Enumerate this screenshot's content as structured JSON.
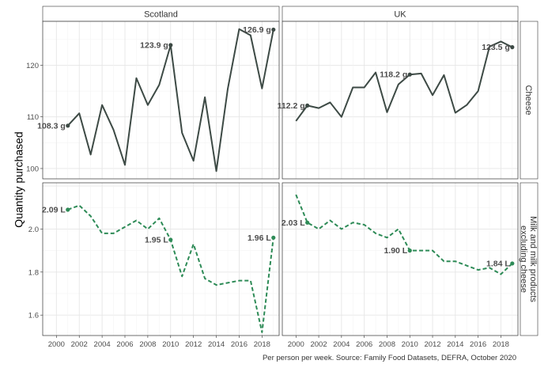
{
  "chart_data": {
    "type": "line",
    "ylabel": "Quantity purchased",
    "caption": "Per person per week. Source: Family Food Datasets, DEFRA, October 2020",
    "column_strips": [
      "Scotland",
      "UK"
    ],
    "row_strips": [
      "Cheese",
      "Milk and milk products\nexcluding cheese"
    ],
    "x_ticks": [
      2000,
      2002,
      2004,
      2006,
      2008,
      2010,
      2012,
      2014,
      2016,
      2018
    ],
    "x_range": [
      1998.8,
      2019.5
    ],
    "grid": true,
    "colors": {
      "cheese": "#3d4a45",
      "milk": "#2e8b57"
    },
    "rows": [
      {
        "strip": "Cheese",
        "y_range": [
          98,
          128.5
        ],
        "y_ticks": [
          100,
          110,
          120
        ],
        "panels": [
          {
            "strip": "Scotland",
            "x": [
              2001,
              2002,
              2003,
              2004,
              2005,
              2006,
              2007,
              2008,
              2009,
              2010,
              2011,
              2012,
              2013,
              2014,
              2015,
              2016,
              2017,
              2018,
              2019
            ],
            "values": [
              108.3,
              110.7,
              102.7,
              112.3,
              107.5,
              100.7,
              117.5,
              112.3,
              116.2,
              123.9,
              106.9,
              101.5,
              113.8,
              99.5,
              115.4,
              127.0,
              125.8,
              115.5,
              126.9
            ],
            "labels": [
              {
                "x": 2001,
                "y": 108.3,
                "text": "108.3 g"
              },
              {
                "x": 2010,
                "y": 123.9,
                "text": "123.9 g"
              },
              {
                "x": 2019,
                "y": 126.9,
                "text": "126.9 g"
              }
            ]
          },
          {
            "strip": "UK",
            "x": [
              2000,
              2001,
              2002,
              2003,
              2004,
              2005,
              2006,
              2007,
              2008,
              2009,
              2010,
              2011,
              2012,
              2013,
              2014,
              2015,
              2016,
              2017,
              2018,
              2019
            ],
            "values": [
              109.2,
              112.2,
              111.7,
              112.8,
              110.0,
              115.7,
              115.7,
              118.6,
              110.9,
              116.3,
              118.2,
              118.4,
              114.2,
              118.1,
              110.8,
              112.3,
              115.0,
              123.6,
              124.6,
              123.5
            ],
            "labels": [
              {
                "x": 2001,
                "y": 112.2,
                "text": "112.2 g"
              },
              {
                "x": 2010,
                "y": 118.2,
                "text": "118.2 g"
              },
              {
                "x": 2019,
                "y": 123.5,
                "text": "123.5 g"
              }
            ]
          }
        ]
      },
      {
        "strip": "Milk and milk products\nexcluding cheese",
        "y_range": [
          1.505,
          2.215
        ],
        "y_ticks": [
          1.6,
          1.8,
          2.0
        ],
        "panels": [
          {
            "strip": "Scotland",
            "x": [
              2001,
              2002,
              2003,
              2004,
              2005,
              2006,
              2007,
              2008,
              2009,
              2010,
              2011,
              2012,
              2013,
              2014,
              2015,
              2016,
              2017,
              2018,
              2019
            ],
            "values": [
              2.09,
              2.11,
              2.06,
              1.98,
              1.98,
              2.01,
              2.04,
              2.0,
              2.05,
              1.95,
              1.78,
              1.93,
              1.77,
              1.74,
              1.75,
              1.76,
              1.76,
              1.52,
              1.96
            ],
            "labels": [
              {
                "x": 2001,
                "y": 2.09,
                "text": "2.09 L"
              },
              {
                "x": 2010,
                "y": 1.95,
                "text": "1.95 L"
              },
              {
                "x": 2019,
                "y": 1.96,
                "text": "1.96 L"
              }
            ]
          },
          {
            "strip": "UK",
            "x": [
              2000,
              2001,
              2002,
              2003,
              2004,
              2005,
              2006,
              2007,
              2008,
              2009,
              2010,
              2011,
              2012,
              2013,
              2014,
              2015,
              2016,
              2017,
              2018,
              2019
            ],
            "values": [
              2.16,
              2.03,
              2.0,
              2.04,
              2.0,
              2.03,
              2.02,
              1.98,
              1.96,
              2.0,
              1.9,
              1.9,
              1.9,
              1.85,
              1.85,
              1.83,
              1.81,
              1.82,
              1.79,
              1.84
            ],
            "labels": [
              {
                "x": 2001,
                "y": 2.03,
                "text": "2.03 L"
              },
              {
                "x": 2010,
                "y": 1.9,
                "text": "1.90 L"
              },
              {
                "x": 2019,
                "y": 1.84,
                "text": "1.84 L"
              }
            ]
          }
        ]
      }
    ]
  }
}
